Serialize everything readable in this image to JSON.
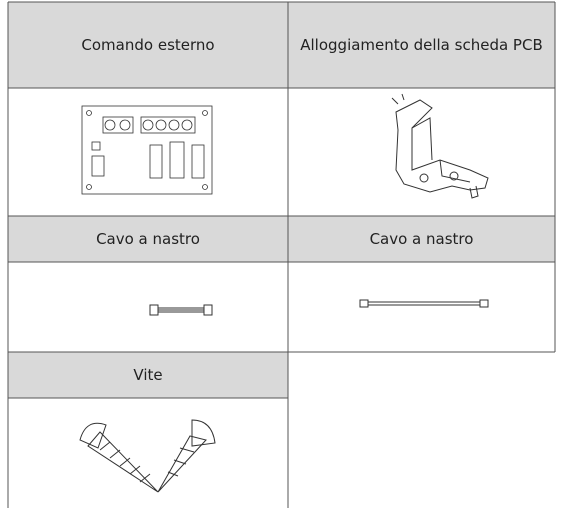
{
  "table": {
    "rows": [
      [
        "Comando esterno",
        "Alloggiamento della scheda PCB"
      ],
      [
        "Cavo a nastro",
        "Cavo a nastro"
      ],
      [
        "Vite"
      ]
    ]
  }
}
